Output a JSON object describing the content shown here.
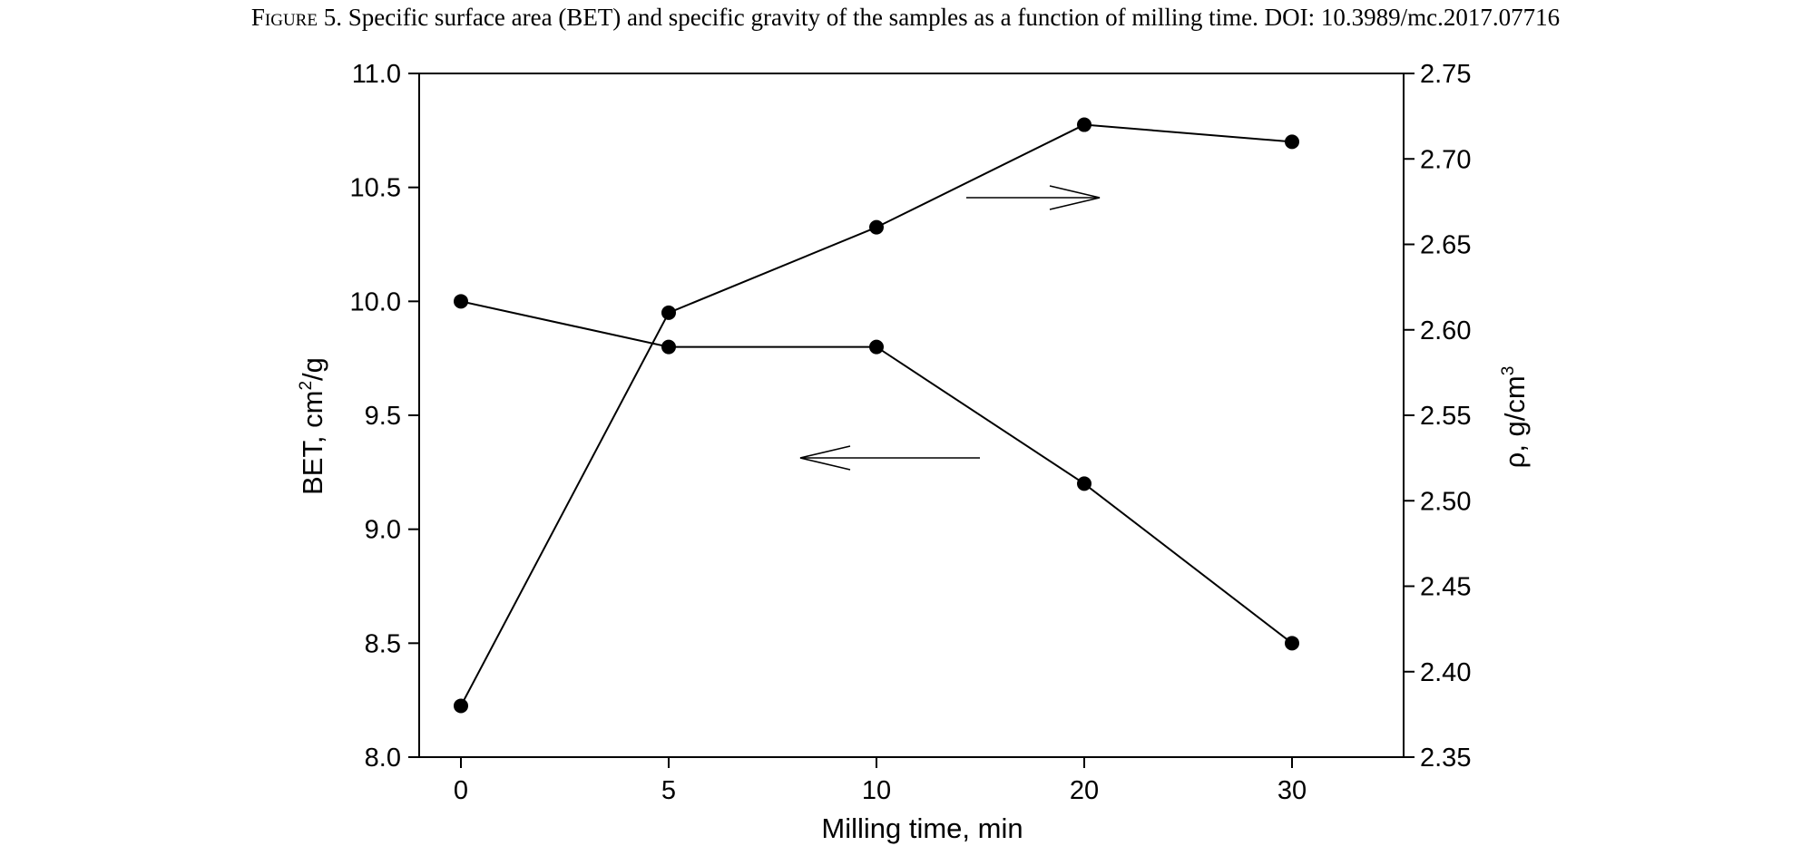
{
  "caption": {
    "label": "Figure 5.",
    "text": "Specific surface area (BET) and specific gravity of the samples as a function of milling time. DOI: 10.3989/mc.2017.07716"
  },
  "chart_data": {
    "type": "line",
    "categories": [
      "0",
      "5",
      "10",
      "20",
      "30"
    ],
    "xlabel": "Milling time, min",
    "ylabel_left": {
      "base": "BET, cm",
      "sup": "2",
      "tail": "/g"
    },
    "ylabel_right": {
      "base": "ρ, g/cm",
      "sup": "3"
    },
    "left_axis": {
      "ylim": [
        8.0,
        11.0
      ],
      "ticks": [
        "8.0",
        "8.5",
        "9.0",
        "9.5",
        "10.0",
        "10.5",
        "11.0"
      ]
    },
    "right_axis": {
      "ylim": [
        2.35,
        2.75
      ],
      "ticks": [
        "2.35",
        "2.40",
        "2.45",
        "2.50",
        "2.55",
        "2.60",
        "2.65",
        "2.70",
        "2.75"
      ]
    },
    "series": [
      {
        "axis": "left",
        "values": [
          10.0,
          9.8,
          9.8,
          9.2,
          8.5
        ]
      },
      {
        "axis": "right",
        "values": [
          2.38,
          2.61,
          2.66,
          2.72,
          2.71
        ]
      }
    ],
    "annotations": [
      {
        "type": "arrow",
        "direction": "right",
        "points_to": "right_axis",
        "near_series": 1
      },
      {
        "type": "arrow",
        "direction": "left",
        "points_to": "left_axis",
        "near_series": 0
      }
    ],
    "grid": false,
    "legend": "none"
  },
  "style": {
    "line_color": "#000000",
    "marker_color": "#000000"
  }
}
